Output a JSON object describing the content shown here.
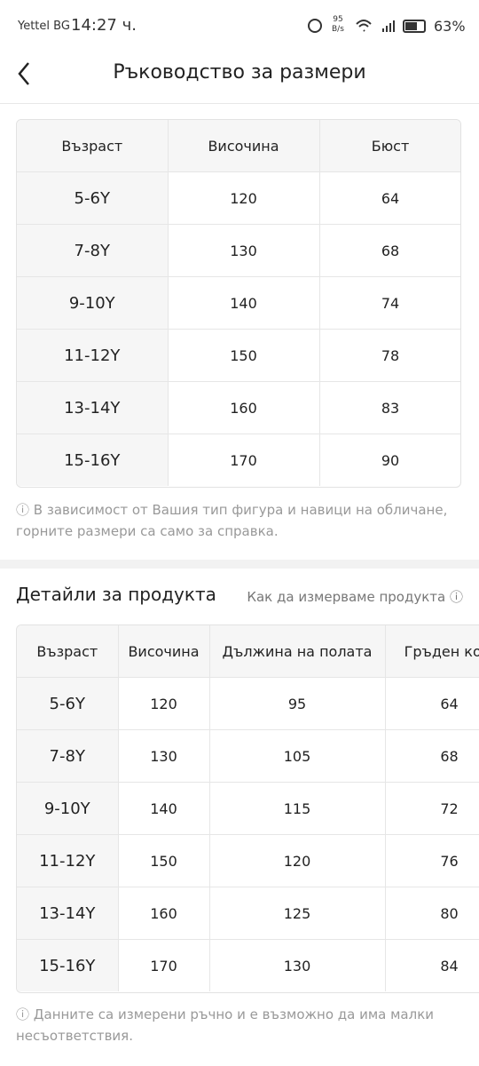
{
  "status_bar": {
    "carrier": "Yettel BG",
    "time": "14:27 ч.",
    "speed": "95",
    "speed_unit": "B/s",
    "battery": "63%"
  },
  "header": {
    "title": "Ръководство за размери"
  },
  "size_table": {
    "columns": [
      "Възраст",
      "Височина",
      "Бюст"
    ],
    "rows": [
      [
        "5-6Y",
        120,
        64
      ],
      [
        "7-8Y",
        130,
        68
      ],
      [
        "9-10Y",
        140,
        74
      ],
      [
        "11-12Y",
        150,
        78
      ],
      [
        "13-14Y",
        160,
        83
      ],
      [
        "15-16Y",
        170,
        90
      ]
    ]
  },
  "size_note": "В зависимост от Вашия тип фигура и навици на обличане, горните размери са само за справка.",
  "product_section": {
    "title": "Детайли за продукта",
    "link": "Как да измерваме продукта"
  },
  "product_table": {
    "columns": [
      "Възраст",
      "Височина",
      "Дължина на полата",
      "Гръден кош"
    ],
    "rows": [
      [
        "5-6Y",
        120,
        95,
        64
      ],
      [
        "7-8Y",
        130,
        105,
        68
      ],
      [
        "9-10Y",
        140,
        115,
        72
      ],
      [
        "11-12Y",
        150,
        120,
        76
      ],
      [
        "13-14Y",
        160,
        125,
        80
      ],
      [
        "15-16Y",
        170,
        130,
        84
      ]
    ]
  },
  "product_note": "Данните са измерени ръчно и е възможно да има малки несъответствия."
}
